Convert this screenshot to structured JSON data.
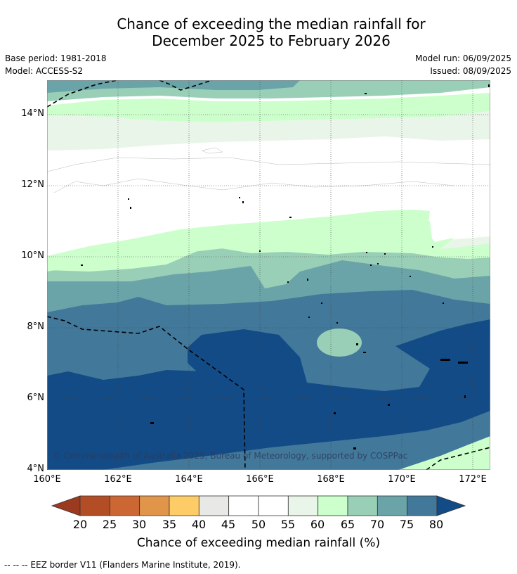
{
  "title": {
    "line1": "Chance of exceeding the median rainfall for",
    "line2": "December 2025 to February 2026"
  },
  "meta": {
    "base_period": "Base period: 1981-2018",
    "model": "Model: ACCESS-S2",
    "model_run": "Model run: 06/09/2025",
    "issued": "Issued: 08/09/2025"
  },
  "map": {
    "lon_range": [
      160,
      172.5
    ],
    "lat_range": [
      4,
      15
    ],
    "lon_ticks": [
      "160°E",
      "162°E",
      "164°E",
      "166°E",
      "168°E",
      "170°E",
      "172°E"
    ],
    "lat_ticks": [
      "4°N",
      "6°N",
      "8°N",
      "10°N",
      "12°N",
      "14°N"
    ],
    "copyright": "© Commonwealth of Australia 2025, Bureau of Meteorology, supported by COSPPac"
  },
  "colorbar": {
    "labels": [
      "20",
      "25",
      "30",
      "35",
      "40",
      "45",
      "50",
      "55",
      "60",
      "65",
      "70",
      "75",
      "80"
    ],
    "colors": [
      "#9c3a20",
      "#b24d26",
      "#cc6633",
      "#e0954a",
      "#fdcc66",
      "#e8e8e6",
      "#ffffff",
      "#ffffff",
      "#eaf5ea",
      "#ccffcc",
      "#99cfb6",
      "#6aa4a8",
      "#42789a",
      "#134b87"
    ],
    "title": "Chance of exceeding median rainfall (%)"
  },
  "footer": {
    "legend": "--  --  -- EEZ border V11 (Flanders Marine Institute, 2019)."
  }
}
